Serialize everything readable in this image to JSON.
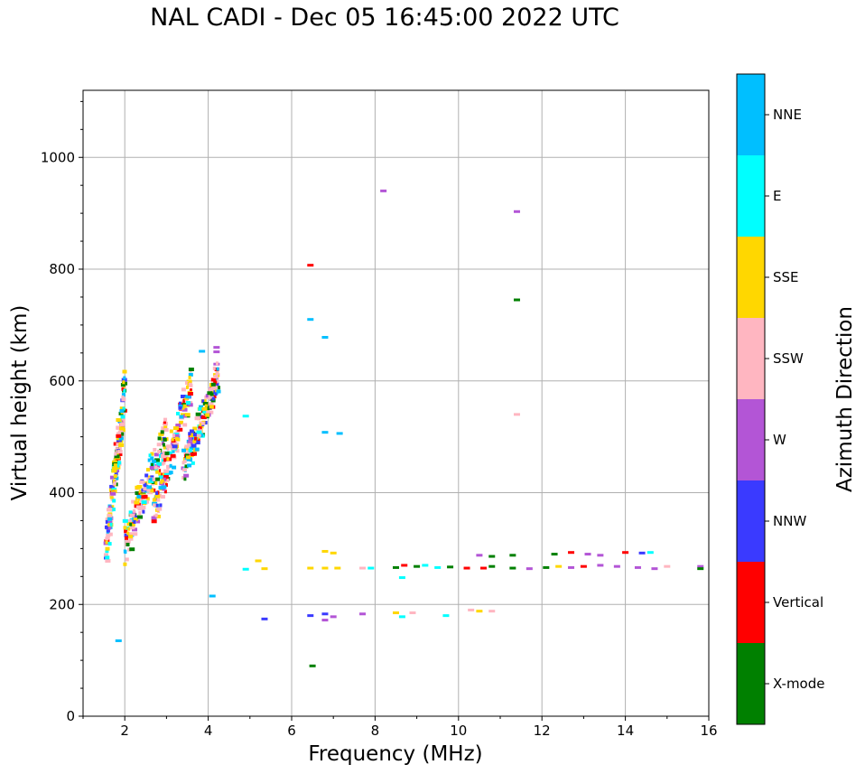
{
  "chart_data": {
    "type": "scatter",
    "title": "NAL CADI - Dec 05 16:45:00 2022 UTC",
    "xlabel": "Frequency (MHz)",
    "ylabel": "Virtual height (km)",
    "xlim": [
      1,
      16
    ],
    "ylim": [
      0,
      1120
    ],
    "xticks": [
      2,
      4,
      6,
      8,
      10,
      12,
      14,
      16
    ],
    "yticks": [
      0,
      200,
      400,
      600,
      800,
      1000
    ],
    "grid": true,
    "colorbar": {
      "label": "Azimuth Direction",
      "categories": [
        {
          "name": "X-mode",
          "color": "#008000"
        },
        {
          "name": "Vertical",
          "color": "#ff0000"
        },
        {
          "name": "NNW",
          "color": "#3a3aff"
        },
        {
          "name": "W",
          "color": "#b355d6"
        },
        {
          "name": "SSW",
          "color": "#ffb6c1"
        },
        {
          "name": "SSE",
          "color": "#ffd700"
        },
        {
          "name": "E",
          "color": "#00ffff"
        },
        {
          "name": "NNE",
          "color": "#00bfff"
        }
      ]
    },
    "echoes": [
      {
        "f": 1.85,
        "h": 135,
        "dir": "NNE"
      },
      {
        "f": 6.45,
        "h": 807,
        "dir": "Vertical"
      },
      {
        "f": 6.45,
        "h": 710,
        "dir": "NNE"
      },
      {
        "f": 6.8,
        "h": 678,
        "dir": "NNE"
      },
      {
        "f": 6.8,
        "h": 508,
        "dir": "NNE"
      },
      {
        "f": 7.15,
        "h": 506,
        "dir": "NNE"
      },
      {
        "f": 4.9,
        "h": 537,
        "dir": "E"
      },
      {
        "f": 8.2,
        "h": 940,
        "dir": "W"
      },
      {
        "f": 11.4,
        "h": 903,
        "dir": "W"
      },
      {
        "f": 11.4,
        "h": 745,
        "dir": "X-mode"
      },
      {
        "f": 11.4,
        "h": 540,
        "dir": "SSW"
      },
      {
        "f": 3.85,
        "h": 653,
        "dir": "NNE"
      },
      {
        "f": 4.2,
        "h": 660,
        "dir": "W"
      },
      {
        "f": 4.2,
        "h": 652,
        "dir": "W"
      },
      {
        "f": 4.2,
        "h": 630,
        "dir": "W"
      },
      {
        "f": 4.2,
        "h": 622,
        "dir": "SSW"
      },
      {
        "f": 4.1,
        "h": 215,
        "dir": "NNE"
      },
      {
        "f": 6.5,
        "h": 90,
        "dir": "X-mode"
      },
      {
        "f": 4.9,
        "h": 263,
        "dir": "E"
      },
      {
        "f": 5.2,
        "h": 278,
        "dir": "SSE"
      },
      {
        "f": 5.35,
        "h": 264,
        "dir": "SSE"
      },
      {
        "f": 5.35,
        "h": 174,
        "dir": "NNW"
      },
      {
        "f": 6.45,
        "h": 265,
        "dir": "SSE"
      },
      {
        "f": 6.45,
        "h": 180,
        "dir": "NNW"
      },
      {
        "f": 6.8,
        "h": 295,
        "dir": "SSE"
      },
      {
        "f": 7.0,
        "h": 292,
        "dir": "SSE"
      },
      {
        "f": 6.8,
        "h": 265,
        "dir": "SSE"
      },
      {
        "f": 7.1,
        "h": 265,
        "dir": "SSE"
      },
      {
        "f": 7.7,
        "h": 265,
        "dir": "SSW"
      },
      {
        "f": 7.9,
        "h": 265,
        "dir": "E"
      },
      {
        "f": 6.8,
        "h": 183,
        "dir": "NNW"
      },
      {
        "f": 6.8,
        "h": 172,
        "dir": "W"
      },
      {
        "f": 7.0,
        "h": 178,
        "dir": "W"
      },
      {
        "f": 7.7,
        "h": 183,
        "dir": "W"
      },
      {
        "f": 8.5,
        "h": 185,
        "dir": "SSE"
      },
      {
        "f": 8.9,
        "h": 185,
        "dir": "SSW"
      },
      {
        "f": 8.65,
        "h": 178,
        "dir": "E"
      },
      {
        "f": 9.7,
        "h": 180,
        "dir": "E"
      },
      {
        "f": 10.3,
        "h": 190,
        "dir": "SSW"
      },
      {
        "f": 10.5,
        "h": 188,
        "dir": "SSE"
      },
      {
        "f": 10.8,
        "h": 188,
        "dir": "SSW"
      },
      {
        "f": 8.65,
        "h": 248,
        "dir": "E"
      },
      {
        "f": 10.5,
        "h": 288,
        "dir": "W"
      },
      {
        "f": 10.8,
        "h": 286,
        "dir": "X-mode"
      },
      {
        "f": 11.3,
        "h": 288,
        "dir": "X-mode"
      },
      {
        "f": 12.3,
        "h": 290,
        "dir": "X-mode"
      },
      {
        "f": 12.7,
        "h": 293,
        "dir": "Vertical"
      },
      {
        "f": 13.1,
        "h": 290,
        "dir": "W"
      },
      {
        "f": 13.4,
        "h": 288,
        "dir": "W"
      },
      {
        "f": 14.0,
        "h": 293,
        "dir": "Vertical"
      },
      {
        "f": 14.4,
        "h": 292,
        "dir": "NNW"
      },
      {
        "f": 14.6,
        "h": 293,
        "dir": "E"
      },
      {
        "f": 8.5,
        "h": 266,
        "dir": "X-mode"
      },
      {
        "f": 8.7,
        "h": 270,
        "dir": "Vertical"
      },
      {
        "f": 9.0,
        "h": 268,
        "dir": "X-mode"
      },
      {
        "f": 9.2,
        "h": 270,
        "dir": "E"
      },
      {
        "f": 9.5,
        "h": 266,
        "dir": "E"
      },
      {
        "f": 9.8,
        "h": 267,
        "dir": "X-mode"
      },
      {
        "f": 10.2,
        "h": 265,
        "dir": "Vertical"
      },
      {
        "f": 10.6,
        "h": 265,
        "dir": "Vertical"
      },
      {
        "f": 10.8,
        "h": 268,
        "dir": "X-mode"
      },
      {
        "f": 11.3,
        "h": 265,
        "dir": "X-mode"
      },
      {
        "f": 11.7,
        "h": 264,
        "dir": "W"
      },
      {
        "f": 12.1,
        "h": 266,
        "dir": "X-mode"
      },
      {
        "f": 12.4,
        "h": 268,
        "dir": "SSE"
      },
      {
        "f": 12.7,
        "h": 266,
        "dir": "W"
      },
      {
        "f": 13.0,
        "h": 268,
        "dir": "Vertical"
      },
      {
        "f": 13.4,
        "h": 270,
        "dir": "W"
      },
      {
        "f": 13.8,
        "h": 268,
        "dir": "W"
      },
      {
        "f": 14.3,
        "h": 266,
        "dir": "W"
      },
      {
        "f": 14.7,
        "h": 264,
        "dir": "W"
      },
      {
        "f": 15.0,
        "h": 268,
        "dir": "SSW"
      },
      {
        "f": 15.8,
        "h": 268,
        "dir": "W"
      },
      {
        "f": 15.8,
        "h": 264,
        "dir": "X-mode"
      }
    ],
    "clusters": [
      {
        "f": [
          1.55,
          2.0
        ],
        "h": [
          290,
          580
        ],
        "slope": 0.75,
        "count": 170
      },
      {
        "f": [
          2.0,
          3.0
        ],
        "h": [
          310,
          500
        ],
        "slope": 0.6,
        "count": 170
      },
      {
        "f": [
          2.7,
          3.6
        ],
        "h": [
          360,
          600
        ],
        "slope": 0.55,
        "count": 150
      },
      {
        "f": [
          3.4,
          4.25
        ],
        "h": [
          440,
          610
        ],
        "slope": 0.4,
        "count": 180
      }
    ]
  }
}
